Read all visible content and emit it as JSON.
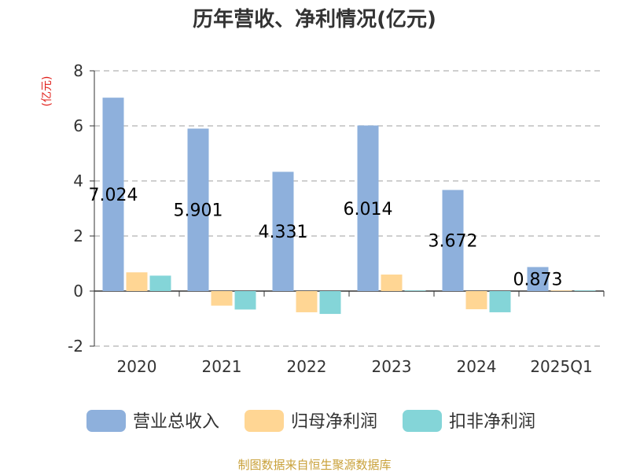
{
  "chart_data": {
    "type": "bar",
    "title": "历年营收、净利情况(亿元)",
    "ylabel": "(亿元)",
    "ylim": [
      -2,
      8
    ],
    "yticks": [
      -2,
      0,
      2,
      4,
      6,
      8
    ],
    "grid": true,
    "legend_position": "bottom",
    "categories": [
      "2020",
      "2021",
      "2022",
      "2023",
      "2024",
      "2025Q1"
    ],
    "series": [
      {
        "name": "营业总收入",
        "color": "#8eb0dc",
        "values": [
          7.024,
          5.901,
          4.331,
          6.014,
          3.672,
          0.873
        ],
        "labels": [
          "7.024",
          "5.901",
          "4.331",
          "6.014",
          "3.672",
          "0.873"
        ]
      },
      {
        "name": "归母净利润",
        "color": "#ffd694",
        "values": [
          0.68,
          -0.53,
          -0.77,
          0.6,
          -0.66,
          0.02
        ]
      },
      {
        "name": "扣非净利润",
        "color": "#84d5d8",
        "values": [
          0.56,
          -0.67,
          -0.83,
          0.02,
          -0.77,
          0.02
        ]
      }
    ],
    "source": "制图数据来自恒生聚源数据库"
  }
}
